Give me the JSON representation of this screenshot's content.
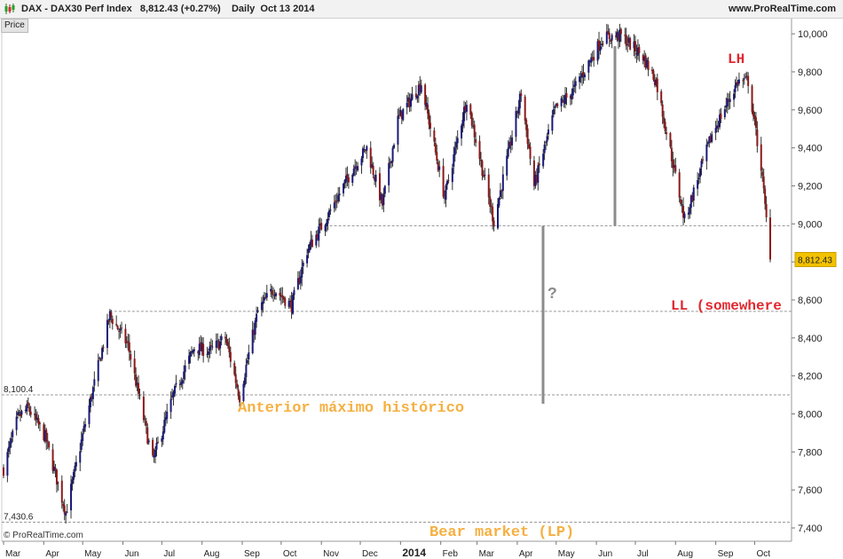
{
  "header": {
    "symbol": "DAX",
    "sep": " - ",
    "name": "DAX30 Perf Index",
    "last": "8,812.43",
    "change": "(+0.27%)",
    "period": "Daily",
    "date": "Oct 13 2014",
    "site": "www.ProRealTime.com"
  },
  "panel_tag": "Price",
  "copyright_symbol": "©",
  "copyright": "ProRealTime.com",
  "colors": {
    "up_candle": "#1a1a7a",
    "down_candle": "#8b1a1a",
    "wick": "#333333",
    "annotation_orange": "#f5b041",
    "annotation_red": "#e0282f",
    "reference_line": "#8c8c8c",
    "price_tag": "#f2c200"
  },
  "chart_data": {
    "type": "candlestick",
    "title": "DAX30 Perf Index",
    "period": "Daily",
    "x": {
      "start": "2013-03-01",
      "end": "2014-10-13",
      "tick_labels": [
        "Mar",
        "Apr",
        "May",
        "Jun",
        "Jul",
        "Aug",
        "Sep",
        "Oct",
        "Nov",
        "Dec",
        "2014",
        "Feb",
        "Mar",
        "Apr",
        "May",
        "Jun",
        "Jul",
        "Aug",
        "Sep",
        "Oct"
      ],
      "tick_dates": [
        "2013-03-01",
        "2013-04-01",
        "2013-05-01",
        "2013-06-01",
        "2013-07-01",
        "2013-08-01",
        "2013-09-01",
        "2013-10-01",
        "2013-11-01",
        "2013-12-01",
        "2014-01-01",
        "2014-02-01",
        "2014-03-01",
        "2014-04-01",
        "2014-05-01",
        "2014-06-01",
        "2014-07-01",
        "2014-08-01",
        "2014-09-01",
        "2014-10-01"
      ]
    },
    "y": {
      "range": [
        7330,
        10080
      ],
      "ticks": [
        7400,
        7600,
        7800,
        8000,
        8200,
        8400,
        8600,
        8800,
        9000,
        9200,
        9400,
        9600,
        9800,
        10000
      ],
      "tick_labels": [
        "7,400",
        "7,600",
        "7,800",
        "8,000",
        "8,200",
        "8,400",
        "8,600",
        "8,800",
        "9,000",
        "9,200",
        "9,400",
        "9,600",
        "9,800",
        "10,000"
      ]
    },
    "last_price": 8812.43,
    "last_price_label": "8,812.43",
    "close_path": [
      {
        "d": "2013-03-01",
        "v": 7710
      },
      {
        "d": "2013-03-12",
        "v": 7980
      },
      {
        "d": "2013-03-20",
        "v": 8030
      },
      {
        "d": "2013-04-02",
        "v": 7880
      },
      {
        "d": "2013-04-18",
        "v": 7480
      },
      {
        "d": "2013-05-03",
        "v": 7950
      },
      {
        "d": "2013-05-22",
        "v": 8520
      },
      {
        "d": "2013-06-05",
        "v": 8360
      },
      {
        "d": "2013-06-24",
        "v": 7750
      },
      {
        "d": "2013-07-10",
        "v": 8100
      },
      {
        "d": "2013-07-26",
        "v": 8350
      },
      {
        "d": "2013-08-07",
        "v": 8330
      },
      {
        "d": "2013-08-19",
        "v": 8400
      },
      {
        "d": "2013-08-30",
        "v": 8090
      },
      {
        "d": "2013-09-13",
        "v": 8540
      },
      {
        "d": "2013-09-25",
        "v": 8660
      },
      {
        "d": "2013-10-09",
        "v": 8570
      },
      {
        "d": "2013-10-21",
        "v": 8860
      },
      {
        "d": "2013-11-04",
        "v": 9020
      },
      {
        "d": "2013-11-26",
        "v": 9300
      },
      {
        "d": "2013-12-06",
        "v": 9400
      },
      {
        "d": "2013-12-18",
        "v": 9100
      },
      {
        "d": "2013-12-30",
        "v": 9550
      },
      {
        "d": "2014-01-17",
        "v": 9740
      },
      {
        "d": "2014-02-04",
        "v": 9140
      },
      {
        "d": "2014-02-21",
        "v": 9660
      },
      {
        "d": "2014-03-14",
        "v": 9010
      },
      {
        "d": "2014-04-04",
        "v": 9690
      },
      {
        "d": "2014-04-14",
        "v": 9200
      },
      {
        "d": "2014-04-30",
        "v": 9600
      },
      {
        "d": "2014-05-14",
        "v": 9700
      },
      {
        "d": "2014-06-06",
        "v": 9980
      },
      {
        "d": "2014-06-20",
        "v": 9990
      },
      {
        "d": "2014-07-07",
        "v": 9880
      },
      {
        "d": "2014-07-17",
        "v": 9750
      },
      {
        "d": "2014-08-08",
        "v": 9020
      },
      {
        "d": "2014-08-29",
        "v": 9470
      },
      {
        "d": "2014-09-18",
        "v": 9750
      },
      {
        "d": "2014-09-26",
        "v": 9750
      },
      {
        "d": "2014-10-06",
        "v": 9300
      },
      {
        "d": "2014-10-13",
        "v": 8812
      }
    ],
    "reference_lines": [
      {
        "value": 8100.4,
        "label": "8,100.4"
      },
      {
        "value": 7430.6,
        "label": "7,430.6"
      },
      {
        "value": 8540
      },
      {
        "value": 8990
      }
    ],
    "annotations": [
      {
        "text": "Anterior máximo histórico",
        "color": "orange"
      },
      {
        "text": "Bear market (LP)",
        "color": "orange"
      },
      {
        "text": "LH",
        "color": "red"
      },
      {
        "text": "LL (somewhere",
        "color": "red"
      },
      {
        "text": "?",
        "color": "gray"
      }
    ]
  }
}
